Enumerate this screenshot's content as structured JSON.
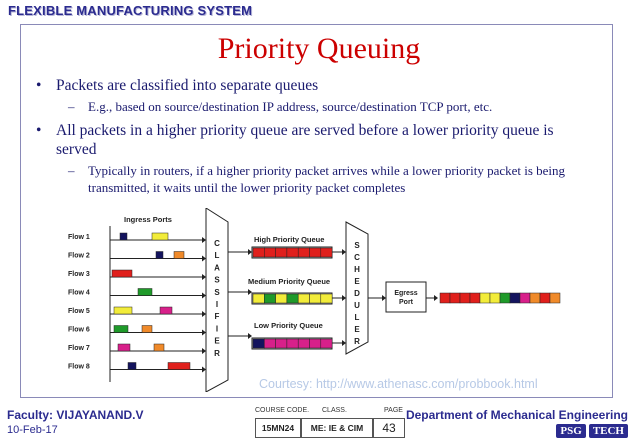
{
  "header": {
    "title": "FLEXIBLE MANUFACTURING SYSTEM"
  },
  "slide": {
    "title": "Priority Queuing",
    "bullets": [
      {
        "text": "Packets are classified into separate queues",
        "sub": [
          "E.g., based on source/destination IP address, source/destination TCP port, etc."
        ]
      },
      {
        "text": "All packets in a higher priority queue are served before a lower priority queue is served",
        "sub": [
          "Typically in routers, if a higher priority packet arrives while a lower priority packet is being transmitted, it waits until the lower priority packet completes"
        ]
      }
    ],
    "courtesy": "Courtesy: http://www.athenasc.com/probbook.html"
  },
  "diagram": {
    "ingress_label": "Ingress Ports",
    "flows": [
      "Flow 1",
      "Flow 2",
      "Flow 3",
      "Flow 4",
      "Flow 5",
      "Flow 6",
      "Flow 7",
      "Flow 8"
    ],
    "classifier_letters": [
      "C",
      "L",
      "A",
      "S",
      "S",
      "I",
      "F",
      "I",
      "E",
      "R"
    ],
    "scheduler_letters": [
      "S",
      "C",
      "H",
      "E",
      "D",
      "U",
      "L",
      "E",
      "R"
    ],
    "queues": [
      "High Priority Queue",
      "Medium Priority Queue",
      "Low Priority Queue"
    ],
    "egress_lines": [
      "Egress",
      "Port"
    ],
    "colors": {
      "red": "#e0201c",
      "yellow": "#f2ec3a",
      "green": "#1f9a2a",
      "orange": "#f08a2a",
      "navy": "#14145e",
      "magenta": "#d8208a"
    }
  },
  "footer": {
    "faculty": "Faculty: VIJAYANAND.V",
    "date": "10-Feb-17",
    "course_code_label": "COURSE CODE.",
    "class_label": "CLASS.",
    "page_label": "PAGE",
    "course_code": "15MN24",
    "class": "ME: IE & CIM",
    "page": "43",
    "department": "Department of Mechanical Engineering",
    "logo": [
      "PSG",
      "TECH"
    ]
  }
}
